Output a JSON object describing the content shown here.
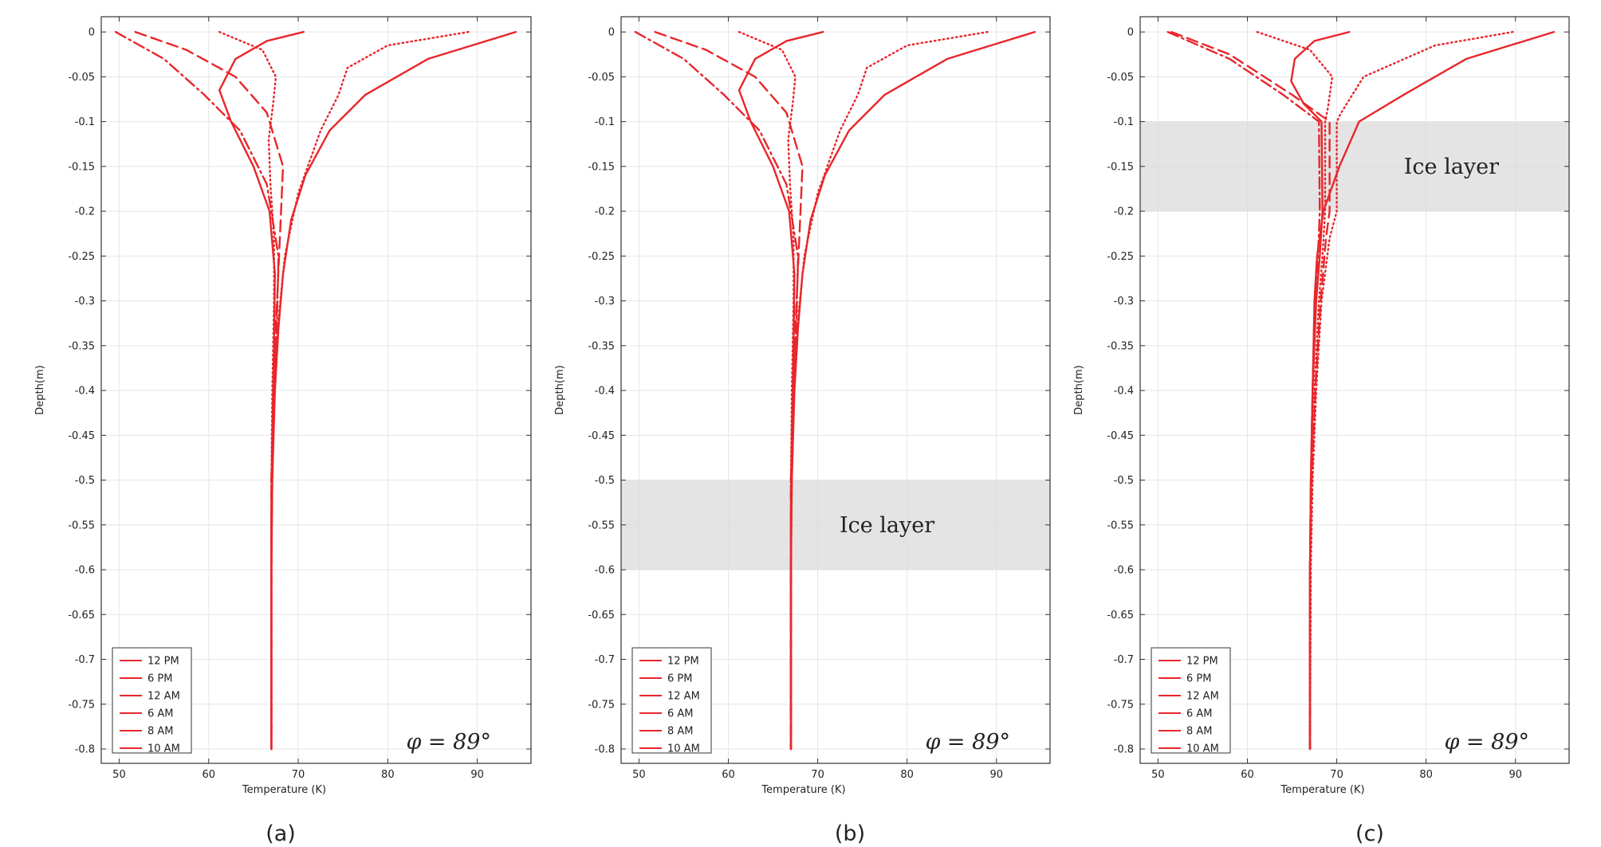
{
  "chart_data": [
    {
      "type": "line",
      "panel_label": "(a)",
      "xlabel": "Temperature (K)",
      "ylabel": "Depth(m)",
      "xlim": [
        48,
        96
      ],
      "ylim": [
        -0.816,
        0.017
      ],
      "xticks": [
        50,
        60,
        70,
        80,
        90
      ],
      "yticks": [
        0,
        -0.05,
        -0.1,
        -0.15,
        -0.2,
        -0.25,
        -0.3,
        -0.35,
        -0.4,
        -0.45,
        -0.5,
        -0.55,
        -0.6,
        -0.65,
        -0.7,
        -0.75,
        -0.8
      ],
      "grid": true,
      "legend_position": "bottom-left",
      "annotation": "φ = 89°",
      "ice_layer": null,
      "series": [
        {
          "name": "12 PM",
          "dash": "solid",
          "points": [
            [
              94.3,
              0
            ],
            [
              84.5,
              -0.03
            ],
            [
              77.5,
              -0.07
            ],
            [
              73.5,
              -0.11
            ],
            [
              70.8,
              -0.16
            ],
            [
              69.2,
              -0.21
            ],
            [
              68.3,
              -0.27
            ],
            [
              67.8,
              -0.33
            ],
            [
              67.4,
              -0.4
            ],
            [
              67.1,
              -0.5
            ],
            [
              67,
              -0.6
            ],
            [
              67,
              -0.8
            ]
          ]
        },
        {
          "name": "6 PM",
          "dash": "dot",
          "points": [
            [
              89,
              0
            ],
            [
              80,
              -0.015
            ],
            [
              75.5,
              -0.04
            ],
            [
              74.5,
              -0.07
            ],
            [
              72.5,
              -0.11
            ],
            [
              70,
              -0.18
            ],
            [
              68.5,
              -0.25
            ],
            [
              67.7,
              -0.33
            ],
            [
              67.3,
              -0.42
            ],
            [
              67.1,
              -0.5
            ],
            [
              67,
              -0.6
            ],
            [
              67,
              -0.8
            ]
          ]
        },
        {
          "name": "12 AM",
          "dash": "dot",
          "points": [
            [
              61.2,
              0
            ],
            [
              66,
              -0.02
            ],
            [
              67.5,
              -0.05
            ],
            [
              67.2,
              -0.08
            ],
            [
              66.7,
              -0.12
            ],
            [
              66.9,
              -0.17
            ],
            [
              67.3,
              -0.23
            ],
            [
              67.3,
              -0.3
            ],
            [
              67.1,
              -0.4
            ],
            [
              67,
              -0.5
            ],
            [
              67,
              -0.8
            ]
          ]
        },
        {
          "name": "6 AM",
          "dash": "dashdot",
          "points": [
            [
              49.6,
              0
            ],
            [
              55,
              -0.03
            ],
            [
              59.5,
              -0.07
            ],
            [
              63.5,
              -0.11
            ],
            [
              66.5,
              -0.17
            ],
            [
              67.8,
              -0.25
            ],
            [
              67.6,
              -0.33
            ],
            [
              67.2,
              -0.42
            ],
            [
              67,
              -0.5
            ],
            [
              67,
              -0.8
            ]
          ]
        },
        {
          "name": "8 AM",
          "dash": "dash",
          "points": [
            [
              51.8,
              0
            ],
            [
              57.5,
              -0.02
            ],
            [
              63,
              -0.05
            ],
            [
              66.5,
              -0.09
            ],
            [
              68.3,
              -0.15
            ],
            [
              67.9,
              -0.24
            ],
            [
              67.5,
              -0.33
            ],
            [
              67.2,
              -0.42
            ],
            [
              67,
              -0.5
            ],
            [
              67,
              -0.8
            ]
          ]
        },
        {
          "name": "10 AM",
          "dash": "solid",
          "points": [
            [
              70.6,
              0
            ],
            [
              66.5,
              -0.01
            ],
            [
              63,
              -0.03
            ],
            [
              61.2,
              -0.065
            ],
            [
              62.5,
              -0.1
            ],
            [
              65,
              -0.15
            ],
            [
              66.8,
              -0.2
            ],
            [
              67.4,
              -0.27
            ],
            [
              67.3,
              -0.35
            ],
            [
              67.1,
              -0.45
            ],
            [
              67,
              -0.55
            ],
            [
              67,
              -0.8
            ]
          ]
        }
      ]
    },
    {
      "type": "line",
      "panel_label": "(b)",
      "xlabel": "Temperature (K)",
      "ylabel": "Depth(m)",
      "xlim": [
        48,
        96
      ],
      "ylim": [
        -0.816,
        0.017
      ],
      "xticks": [
        50,
        60,
        70,
        80,
        90
      ],
      "yticks": [
        0,
        -0.05,
        -0.1,
        -0.15,
        -0.2,
        -0.25,
        -0.3,
        -0.35,
        -0.4,
        -0.45,
        -0.5,
        -0.55,
        -0.6,
        -0.65,
        -0.7,
        -0.75,
        -0.8
      ],
      "grid": true,
      "legend_position": "bottom-left",
      "annotation": "φ = 89°",
      "ice_layer": {
        "label": "Ice layer",
        "top": -0.5,
        "bottom": -0.6
      },
      "series": [
        {
          "name": "12 PM",
          "dash": "solid",
          "points": [
            [
              94.3,
              0
            ],
            [
              84.5,
              -0.03
            ],
            [
              77.5,
              -0.07
            ],
            [
              73.5,
              -0.11
            ],
            [
              70.8,
              -0.16
            ],
            [
              69.2,
              -0.21
            ],
            [
              68.3,
              -0.27
            ],
            [
              67.8,
              -0.33
            ],
            [
              67.4,
              -0.4
            ],
            [
              67.1,
              -0.5
            ],
            [
              67,
              -0.6
            ],
            [
              67,
              -0.8
            ]
          ]
        },
        {
          "name": "6 PM",
          "dash": "dot",
          "points": [
            [
              89,
              0
            ],
            [
              80,
              -0.015
            ],
            [
              75.5,
              -0.04
            ],
            [
              74.5,
              -0.07
            ],
            [
              72.5,
              -0.11
            ],
            [
              70,
              -0.18
            ],
            [
              68.5,
              -0.25
            ],
            [
              67.7,
              -0.33
            ],
            [
              67.3,
              -0.42
            ],
            [
              67.1,
              -0.5
            ],
            [
              67,
              -0.6
            ],
            [
              67,
              -0.8
            ]
          ]
        },
        {
          "name": "12 AM",
          "dash": "dot",
          "points": [
            [
              61.2,
              0
            ],
            [
              66,
              -0.02
            ],
            [
              67.5,
              -0.05
            ],
            [
              67.2,
              -0.08
            ],
            [
              66.7,
              -0.12
            ],
            [
              66.9,
              -0.17
            ],
            [
              67.3,
              -0.23
            ],
            [
              67.3,
              -0.3
            ],
            [
              67.1,
              -0.4
            ],
            [
              67,
              -0.5
            ],
            [
              67,
              -0.8
            ]
          ]
        },
        {
          "name": "6 AM",
          "dash": "dashdot",
          "points": [
            [
              49.6,
              0
            ],
            [
              55,
              -0.03
            ],
            [
              59.5,
              -0.07
            ],
            [
              63.5,
              -0.11
            ],
            [
              66.5,
              -0.17
            ],
            [
              67.8,
              -0.25
            ],
            [
              67.6,
              -0.33
            ],
            [
              67.2,
              -0.42
            ],
            [
              67,
              -0.5
            ],
            [
              67,
              -0.8
            ]
          ]
        },
        {
          "name": "8 AM",
          "dash": "dash",
          "points": [
            [
              51.8,
              0
            ],
            [
              57.5,
              -0.02
            ],
            [
              63,
              -0.05
            ],
            [
              66.5,
              -0.09
            ],
            [
              68.3,
              -0.15
            ],
            [
              67.9,
              -0.24
            ],
            [
              67.5,
              -0.33
            ],
            [
              67.2,
              -0.42
            ],
            [
              67,
              -0.5
            ],
            [
              67,
              -0.8
            ]
          ]
        },
        {
          "name": "10 AM",
          "dash": "solid",
          "points": [
            [
              70.6,
              0
            ],
            [
              66.5,
              -0.01
            ],
            [
              63,
              -0.03
            ],
            [
              61.2,
              -0.065
            ],
            [
              62.5,
              -0.1
            ],
            [
              65,
              -0.15
            ],
            [
              66.8,
              -0.2
            ],
            [
              67.4,
              -0.27
            ],
            [
              67.3,
              -0.35
            ],
            [
              67.1,
              -0.45
            ],
            [
              67,
              -0.55
            ],
            [
              67,
              -0.8
            ]
          ]
        }
      ]
    },
    {
      "type": "line",
      "panel_label": "(c)",
      "xlabel": "Temperature (K)",
      "ylabel": "Depth(m)",
      "xlim": [
        48,
        96
      ],
      "ylim": [
        -0.816,
        0.017
      ],
      "xticks": [
        50,
        60,
        70,
        80,
        90
      ],
      "yticks": [
        0,
        -0.05,
        -0.1,
        -0.15,
        -0.2,
        -0.25,
        -0.3,
        -0.35,
        -0.4,
        -0.45,
        -0.5,
        -0.55,
        -0.6,
        -0.65,
        -0.7,
        -0.75,
        -0.8
      ],
      "grid": true,
      "legend_position": "bottom-left",
      "annotation": "φ = 89°",
      "ice_layer": {
        "label": "Ice layer",
        "top": -0.1,
        "bottom": -0.2
      },
      "series": [
        {
          "name": "12 PM",
          "dash": "solid",
          "points": [
            [
              94.3,
              0
            ],
            [
              84.5,
              -0.03
            ],
            [
              77.5,
              -0.07
            ],
            [
              72.5,
              -0.1
            ],
            [
              70.3,
              -0.15
            ],
            [
              68.5,
              -0.2
            ],
            [
              67.8,
              -0.25
            ],
            [
              67.5,
              -0.3
            ],
            [
              67.3,
              -0.4
            ],
            [
              67.1,
              -0.5
            ],
            [
              67,
              -0.6
            ],
            [
              67,
              -0.8
            ]
          ]
        },
        {
          "name": "6 PM",
          "dash": "dot",
          "points": [
            [
              89.7,
              0
            ],
            [
              81,
              -0.015
            ],
            [
              73,
              -0.05
            ],
            [
              70.5,
              -0.09
            ],
            [
              70,
              -0.1
            ],
            [
              70,
              -0.2
            ],
            [
              69.2,
              -0.23
            ],
            [
              68.3,
              -0.3
            ],
            [
              67.7,
              -0.4
            ],
            [
              67.3,
              -0.5
            ],
            [
              67.1,
              -0.6
            ],
            [
              67,
              -0.8
            ]
          ]
        },
        {
          "name": "12 AM",
          "dash": "dot",
          "points": [
            [
              61.1,
              0
            ],
            [
              67,
              -0.02
            ],
            [
              69.5,
              -0.05
            ],
            [
              69,
              -0.085
            ],
            [
              68.7,
              -0.1
            ],
            [
              68.7,
              -0.2
            ],
            [
              68.4,
              -0.25
            ],
            [
              68,
              -0.3
            ],
            [
              67.5,
              -0.4
            ],
            [
              67.2,
              -0.5
            ],
            [
              67,
              -0.6
            ],
            [
              67,
              -0.8
            ]
          ]
        },
        {
          "name": "6 AM",
          "dash": "dashdot",
          "points": [
            [
              51.1,
              0
            ],
            [
              58,
              -0.03
            ],
            [
              64,
              -0.07
            ],
            [
              68,
              -0.1
            ],
            [
              68.1,
              -0.2
            ],
            [
              67.9,
              -0.25
            ],
            [
              67.6,
              -0.3
            ],
            [
              67.3,
              -0.4
            ],
            [
              67.1,
              -0.5
            ],
            [
              67,
              -0.6
            ],
            [
              67,
              -0.8
            ]
          ]
        },
        {
          "name": "8 AM",
          "dash": "dash",
          "points": [
            [
              51.5,
              0
            ],
            [
              58,
              -0.025
            ],
            [
              65,
              -0.07
            ],
            [
              69.2,
              -0.1
            ],
            [
              69.2,
              -0.2
            ],
            [
              68.8,
              -0.23
            ],
            [
              68.2,
              -0.3
            ],
            [
              67.6,
              -0.4
            ],
            [
              67.2,
              -0.5
            ],
            [
              67,
              -0.6
            ],
            [
              67,
              -0.8
            ]
          ]
        },
        {
          "name": "10 AM",
          "dash": "solid",
          "points": [
            [
              71.4,
              0
            ],
            [
              67.5,
              -0.01
            ],
            [
              65.3,
              -0.03
            ],
            [
              64.9,
              -0.055
            ],
            [
              66.3,
              -0.08
            ],
            [
              68.3,
              -0.1
            ],
            [
              68.4,
              -0.2
            ],
            [
              68.1,
              -0.25
            ],
            [
              67.7,
              -0.3
            ],
            [
              67.3,
              -0.4
            ],
            [
              67.1,
              -0.5
            ],
            [
              67,
              -0.6
            ],
            [
              67,
              -0.8
            ]
          ]
        }
      ]
    }
  ]
}
